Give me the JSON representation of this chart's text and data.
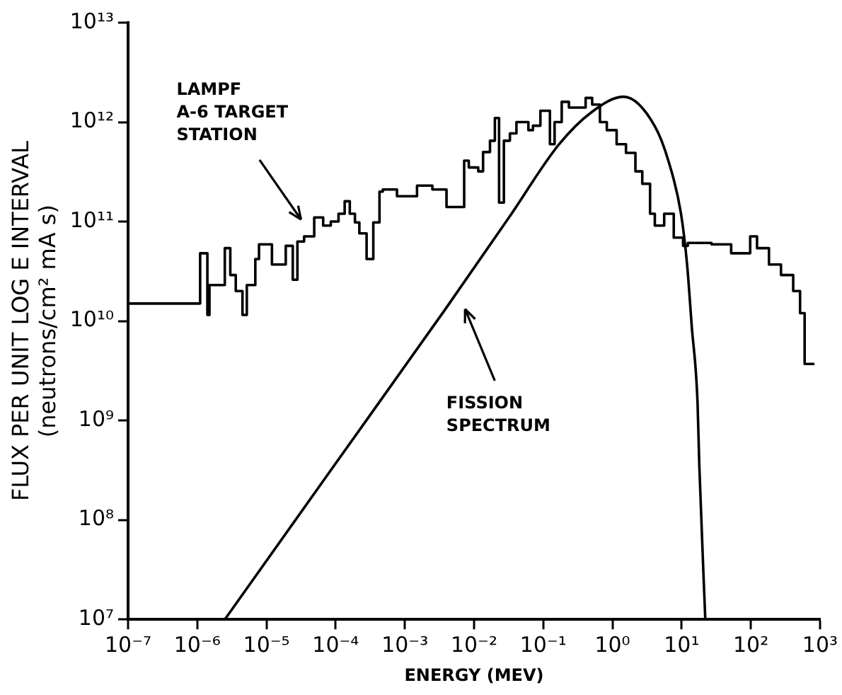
{
  "chart_data": {
    "type": "line",
    "xlabel": "ENERGY (MEV)",
    "ylabel": "FLUX PER UNIT LOG E INTERVAL\n(neutrons/cm² mA s)",
    "log": "xy",
    "grid": false,
    "legend": false,
    "marker": "none",
    "line_style": "solid",
    "xlim": [
      1e-07,
      1000
    ],
    "ylim": [
      10000000.0,
      10000000000000.0
    ],
    "xticks": [
      {
        "value": 1e-07,
        "label": "10⁻⁷"
      },
      {
        "value": 1e-06,
        "label": "10⁻⁶"
      },
      {
        "value": 1e-05,
        "label": "10⁻⁵"
      },
      {
        "value": 0.0001,
        "label": "10⁻⁴"
      },
      {
        "value": 0.001,
        "label": "10⁻³"
      },
      {
        "value": 0.01,
        "label": "10⁻²"
      },
      {
        "value": 0.1,
        "label": "10⁻¹"
      },
      {
        "value": 1,
        "label": "10⁰"
      },
      {
        "value": 10,
        "label": "10¹"
      },
      {
        "value": 100,
        "label": "10²"
      },
      {
        "value": 1000,
        "label": "10³"
      }
    ],
    "yticks": [
      {
        "value": 10000000.0,
        "label": "10⁷"
      },
      {
        "value": 100000000.0,
        "label": "10⁸"
      },
      {
        "value": 1000000000.0,
        "label": "10⁹"
      },
      {
        "value": 10000000000.0,
        "label": "10¹⁰"
      },
      {
        "value": 100000000000.0,
        "label": "10¹¹"
      },
      {
        "value": 1000000000000.0,
        "label": "10¹²"
      },
      {
        "value": 10000000000000.0,
        "label": "10¹³"
      }
    ],
    "series": [
      {
        "type": "step",
        "color": "#000000",
        "x": [
          1e-07,
          1.1e-06,
          1.4e-06,
          1.5e-06,
          2.5e-06,
          3e-06,
          3.6e-06,
          4.5e-06,
          5.2e-06,
          6.9e-06,
          7.8e-06,
          1.2e-05,
          1.9e-05,
          2.4e-05,
          2.8e-05,
          3.5e-05,
          4.9e-05,
          6.6e-05,
          8.5e-05,
          0.00011,
          0.000135,
          0.00016,
          0.00019,
          0.00022,
          0.00028,
          0.00035,
          0.00043,
          0.00048,
          0.00077,
          0.0015,
          0.0025,
          0.004,
          0.0072,
          0.0084,
          0.0115,
          0.0135,
          0.017,
          0.02,
          0.023,
          0.027,
          0.033,
          0.041,
          0.061,
          0.071,
          0.091,
          0.125,
          0.146,
          0.185,
          0.235,
          0.41,
          0.51,
          0.66,
          0.83,
          1.15,
          1.57,
          2.15,
          2.7,
          3.5,
          4.1,
          5.6,
          7.7,
          10.5,
          12.3,
          27,
          52,
          98,
          123,
          183,
          273,
          410,
          515,
          600,
          705,
          830
        ],
        "values": [
          145000000000.0,
          15000000000.0,
          48000000000.0,
          11500000000.0,
          23000000000.0,
          54000000000.0,
          29000000000.0,
          20000000000.0,
          11500000000.0,
          23000000000.0,
          42000000000.0,
          59000000000.0,
          37000000000.0,
          57000000000.0,
          26000000000.0,
          63000000000.0,
          71000000000.0,
          110000000000.0,
          91000000000.0,
          100000000000.0,
          120000000000.0,
          160000000000.0,
          120000000000.0,
          98000000000.0,
          76000000000.0,
          42000000000.0,
          98000000000.0,
          200000000000.0,
          210000000000.0,
          180000000000.0,
          230000000000.0,
          210000000000.0,
          140000000000.0,
          410000000000.0,
          350000000000.0,
          320000000000.0,
          500000000000.0,
          650000000000.0,
          1100000000000.0,
          155000000000.0,
          650000000000.0,
          770000000000.0,
          1000000000000.0,
          830000000000.0,
          920000000000.0,
          1300000000000.0,
          600000000000.0,
          1000000000000.0,
          1600000000000.0,
          1400000000000.0,
          1750000000000.0,
          1500000000000.0,
          1000000000000.0,
          830000000000.0,
          600000000000.0,
          490000000000.0,
          320000000000.0,
          240000000000.0,
          120000000000.0,
          91000000000.0,
          120000000000.0,
          69000000000.0,
          57000000000.0,
          61000000000.0,
          59000000000.0,
          48000000000.0,
          71000000000.0,
          54000000000.0,
          37000000000.0,
          29000000000.0,
          20000000000.0,
          12000000000.0,
          3700000000.0,
          3700000000.0
        ]
      },
      {
        "type": "line",
        "color": "#000000",
        "x": [
          2.5e-06,
          0.0001,
          0.0038,
          0.032,
          0.17,
          0.5,
          1.45,
          4.1,
          6.5,
          9.8,
          12,
          14,
          17,
          18,
          22
        ],
        "values": [
          10000000.0,
          370000000.0,
          13000000000.0,
          110000000000.0,
          600000000000.0,
          1260000000000.0,
          1800000000000.0,
          910000000000.0,
          400000000000.0,
          120000000000.0,
          37000000000.0,
          8900000000.0,
          1500000000.0,
          360000000.0,
          10000000.0
        ]
      }
    ],
    "annotations": [
      "LAMPF\nA-6 TARGET\nSTATION",
      "FISSION\nSPECTRUM"
    ]
  }
}
